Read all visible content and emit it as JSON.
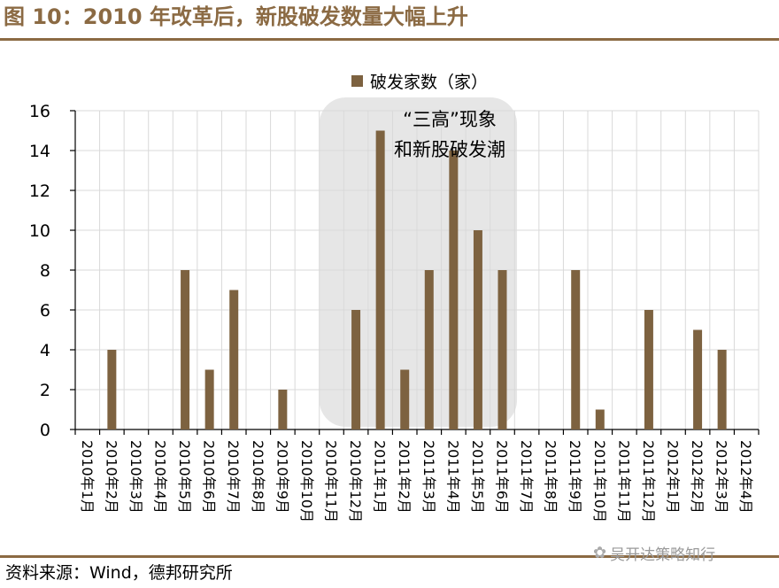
{
  "figure_title": "图 10：2010 年改革后，新股破发数量大幅上升",
  "source": "资料来源：Wind，德邦研究所",
  "watermark": "吴开达策略知行",
  "chart_data": {
    "type": "bar",
    "categories": [
      "2010年1月",
      "2010年2月",
      "2010年3月",
      "2010年4月",
      "2010年5月",
      "2010年6月",
      "2010年7月",
      "2010年8月",
      "2010年9月",
      "2010年10月",
      "2010年11月",
      "2010年12月",
      "2011年1月",
      "2011年2月",
      "2011年3月",
      "2011年4月",
      "2011年5月",
      "2011年6月",
      "2011年7月",
      "2011年8月",
      "2011年9月",
      "2011年10月",
      "2011年11月",
      "2011年12月",
      "2012年1月",
      "2012年2月",
      "2012年3月",
      "2012年4月"
    ],
    "series": [
      {
        "name": "破发家数（家）",
        "values": [
          0,
          4,
          0,
          0,
          8,
          3,
          7,
          0,
          2,
          0,
          0,
          6,
          15,
          3,
          8,
          14,
          10,
          8,
          0,
          0,
          8,
          1,
          0,
          6,
          0,
          5,
          4,
          0
        ]
      }
    ],
    "ylim": [
      0,
      16
    ],
    "yticks": [
      0,
      2,
      4,
      6,
      8,
      10,
      12,
      14,
      16
    ],
    "grid": true,
    "legend_position": "top-center",
    "annotation": {
      "line1": "“三高”现象",
      "line2": "和新股破发潮"
    },
    "bar_color": "#7d6240",
    "highlight_color": "#e6e6e6"
  }
}
